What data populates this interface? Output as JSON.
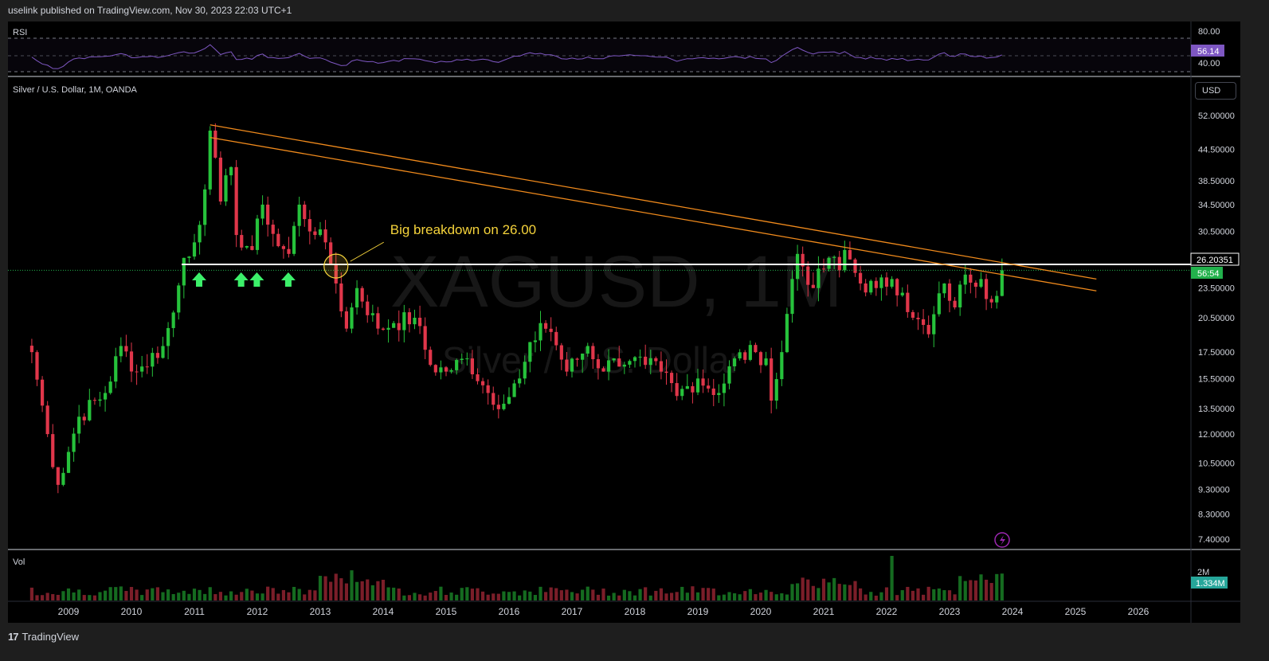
{
  "header": {
    "published": "uselink published on TradingView.com, Nov 30, 2023 22:03 UTC+1"
  },
  "footer": {
    "brand": "TradingView"
  },
  "rsi_panel": {
    "label": "RSI",
    "scale": [
      "80.00",
      "40.00"
    ],
    "current": "56.14",
    "color": "#7e57c2"
  },
  "main_panel": {
    "label": "Silver / U.S. Dollar, 1M, OANDA",
    "currency": "USD",
    "watermark_symbol": "XAGUSD, 1M",
    "watermark_name": "Silver / U.S. Dollar",
    "price_scale": [
      "52.00000",
      "44.50000",
      "38.50000",
      "34.50000",
      "30.50000",
      "23.50000",
      "20.50000",
      "17.50000",
      "15.50000",
      "13.50000",
      "12.00000",
      "10.50000",
      "9.30000",
      "8.30000",
      "7.40000"
    ],
    "level_label": "26.20351",
    "countdown_label": "56:54",
    "annotation": "Big breakdown on 26.00",
    "colors": {
      "up": "#26c23b",
      "down": "#e0364a",
      "trendline": "#f08a1c",
      "annotation": "#f5d33b",
      "level": "#ffffff",
      "current": "#22b14c"
    }
  },
  "volume_panel": {
    "label": "Vol",
    "scale": "2M",
    "current": "1.334M"
  },
  "x_axis": [
    "2009",
    "2010",
    "2011",
    "2012",
    "2013",
    "2014",
    "2015",
    "2016",
    "2017",
    "2018",
    "2019",
    "2020",
    "2021",
    "2022",
    "2023",
    "2024",
    "2025",
    "2026"
  ],
  "chart_data": {
    "type": "candlestick",
    "symbol": "XAGUSD",
    "interval": "1M",
    "y_scale": "log",
    "ylim": [
      7.0,
      56.0
    ],
    "xlim": [
      "2008-05",
      "2027-01"
    ],
    "reference_levels": [
      {
        "value": 26.20351,
        "label": "26.20351"
      }
    ],
    "trendlines": [
      {
        "from": [
          "2011-04",
          49.8
        ],
        "to": [
          "2025-05",
          24.5
        ]
      },
      {
        "from": [
          "2011-04",
          47.0
        ],
        "to": [
          "2025-05",
          23.2
        ]
      }
    ],
    "annotations": [
      {
        "text": "Big breakdown on 26.00",
        "at": [
          "2013-04",
          26.0
        ]
      }
    ],
    "support_arrows": [
      "2011-01",
      "2011-09",
      "2011-12",
      "2012-06"
    ],
    "close_path": [
      [
        "2008-06",
        17.5
      ],
      [
        "2008-09",
        12.0
      ],
      [
        "2008-11",
        9.5
      ],
      [
        "2009-03",
        13.0
      ],
      [
        "2009-08",
        14.5
      ],
      [
        "2009-11",
        18.0
      ],
      [
        "2010-02",
        16.0
      ],
      [
        "2010-07",
        18.0
      ],
      [
        "2010-09",
        21.0
      ],
      [
        "2010-11",
        27.0
      ],
      [
        "2011-01",
        29.0
      ],
      [
        "2011-03",
        37.0
      ],
      [
        "2011-04",
        48.5
      ],
      [
        "2011-06",
        35.0
      ],
      [
        "2011-08",
        41.0
      ],
      [
        "2011-09",
        30.0
      ],
      [
        "2011-12",
        28.0
      ],
      [
        "2012-02",
        34.5
      ],
      [
        "2012-05",
        28.5
      ],
      [
        "2012-07",
        27.5
      ],
      [
        "2012-09",
        34.5
      ],
      [
        "2012-12",
        30.0
      ],
      [
        "2013-02",
        29.0
      ],
      [
        "2013-04",
        24.0
      ],
      [
        "2013-06",
        19.5
      ],
      [
        "2013-08",
        23.5
      ],
      [
        "2013-12",
        19.5
      ],
      [
        "2014-03",
        20.0
      ],
      [
        "2014-07",
        20.5
      ],
      [
        "2014-10",
        16.5
      ],
      [
        "2015-01",
        16.0
      ],
      [
        "2015-05",
        17.0
      ],
      [
        "2015-09",
        14.5
      ],
      [
        "2015-12",
        13.8
      ],
      [
        "2016-03",
        15.5
      ],
      [
        "2016-07",
        20.0
      ],
      [
        "2016-09",
        19.2
      ],
      [
        "2016-12",
        16.0
      ],
      [
        "2017-04",
        18.0
      ],
      [
        "2017-07",
        16.0
      ],
      [
        "2017-09",
        17.0
      ],
      [
        "2017-12",
        16.8
      ],
      [
        "2018-03",
        16.5
      ],
      [
        "2018-06",
        16.0
      ],
      [
        "2018-09",
        14.3
      ],
      [
        "2019-01",
        15.5
      ],
      [
        "2019-05",
        14.5
      ],
      [
        "2019-08",
        17.0
      ],
      [
        "2019-12",
        17.5
      ],
      [
        "2020-02",
        17.0
      ],
      [
        "2020-03",
        14.0
      ],
      [
        "2020-05",
        17.5
      ],
      [
        "2020-07",
        24.5
      ],
      [
        "2020-08",
        27.5
      ],
      [
        "2020-11",
        23.5
      ],
      [
        "2021-02",
        27.0
      ],
      [
        "2021-04",
        25.5
      ],
      [
        "2021-05",
        28.0
      ],
      [
        "2021-08",
        24.0
      ],
      [
        "2021-11",
        23.5
      ],
      [
        "2022-02",
        24.5
      ],
      [
        "2022-04",
        23.0
      ],
      [
        "2022-06",
        20.5
      ],
      [
        "2022-09",
        19.0
      ],
      [
        "2022-12",
        24.0
      ],
      [
        "2023-02",
        21.5
      ],
      [
        "2023-04",
        25.0
      ],
      [
        "2023-07",
        24.5
      ],
      [
        "2023-09",
        22.0
      ],
      [
        "2023-11",
        25.5
      ]
    ]
  }
}
